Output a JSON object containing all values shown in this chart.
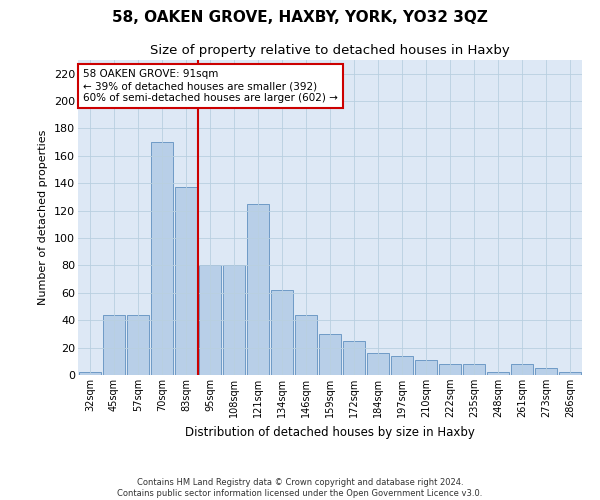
{
  "title": "58, OAKEN GROVE, HAXBY, YORK, YO32 3QZ",
  "subtitle": "Size of property relative to detached houses in Haxby",
  "xlabel": "Distribution of detached houses by size in Haxby",
  "ylabel": "Number of detached properties",
  "footer_line1": "Contains HM Land Registry data © Crown copyright and database right 2024.",
  "footer_line2": "Contains public sector information licensed under the Open Government Licence v3.0.",
  "annotation_title": "58 OAKEN GROVE: 91sqm",
  "annotation_line2": "← 39% of detached houses are smaller (392)",
  "annotation_line3": "60% of semi-detached houses are larger (602) →",
  "categories": [
    "32sqm",
    "45sqm",
    "57sqm",
    "70sqm",
    "83sqm",
    "95sqm",
    "108sqm",
    "121sqm",
    "134sqm",
    "146sqm",
    "159sqm",
    "172sqm",
    "184sqm",
    "197sqm",
    "210sqm",
    "222sqm",
    "235sqm",
    "248sqm",
    "261sqm",
    "273sqm",
    "286sqm"
  ],
  "values": [
    2,
    44,
    44,
    170,
    137,
    80,
    80,
    125,
    62,
    44,
    30,
    25,
    16,
    14,
    11,
    8,
    8,
    2,
    8,
    5,
    2
  ],
  "bar_color": "#b8cfe8",
  "bar_edge_color": "#6090c0",
  "vline_x": 4.5,
  "vline_color": "#cc0000",
  "annotation_box_color": "#cc0000",
  "ylim": [
    0,
    230
  ],
  "yticks": [
    0,
    20,
    40,
    60,
    80,
    100,
    120,
    140,
    160,
    180,
    200,
    220
  ],
  "bg_color": "#ffffff",
  "plot_bg_color": "#dde8f5",
  "grid_color": "#b8cfe0",
  "title_fontsize": 11,
  "subtitle_fontsize": 9.5
}
